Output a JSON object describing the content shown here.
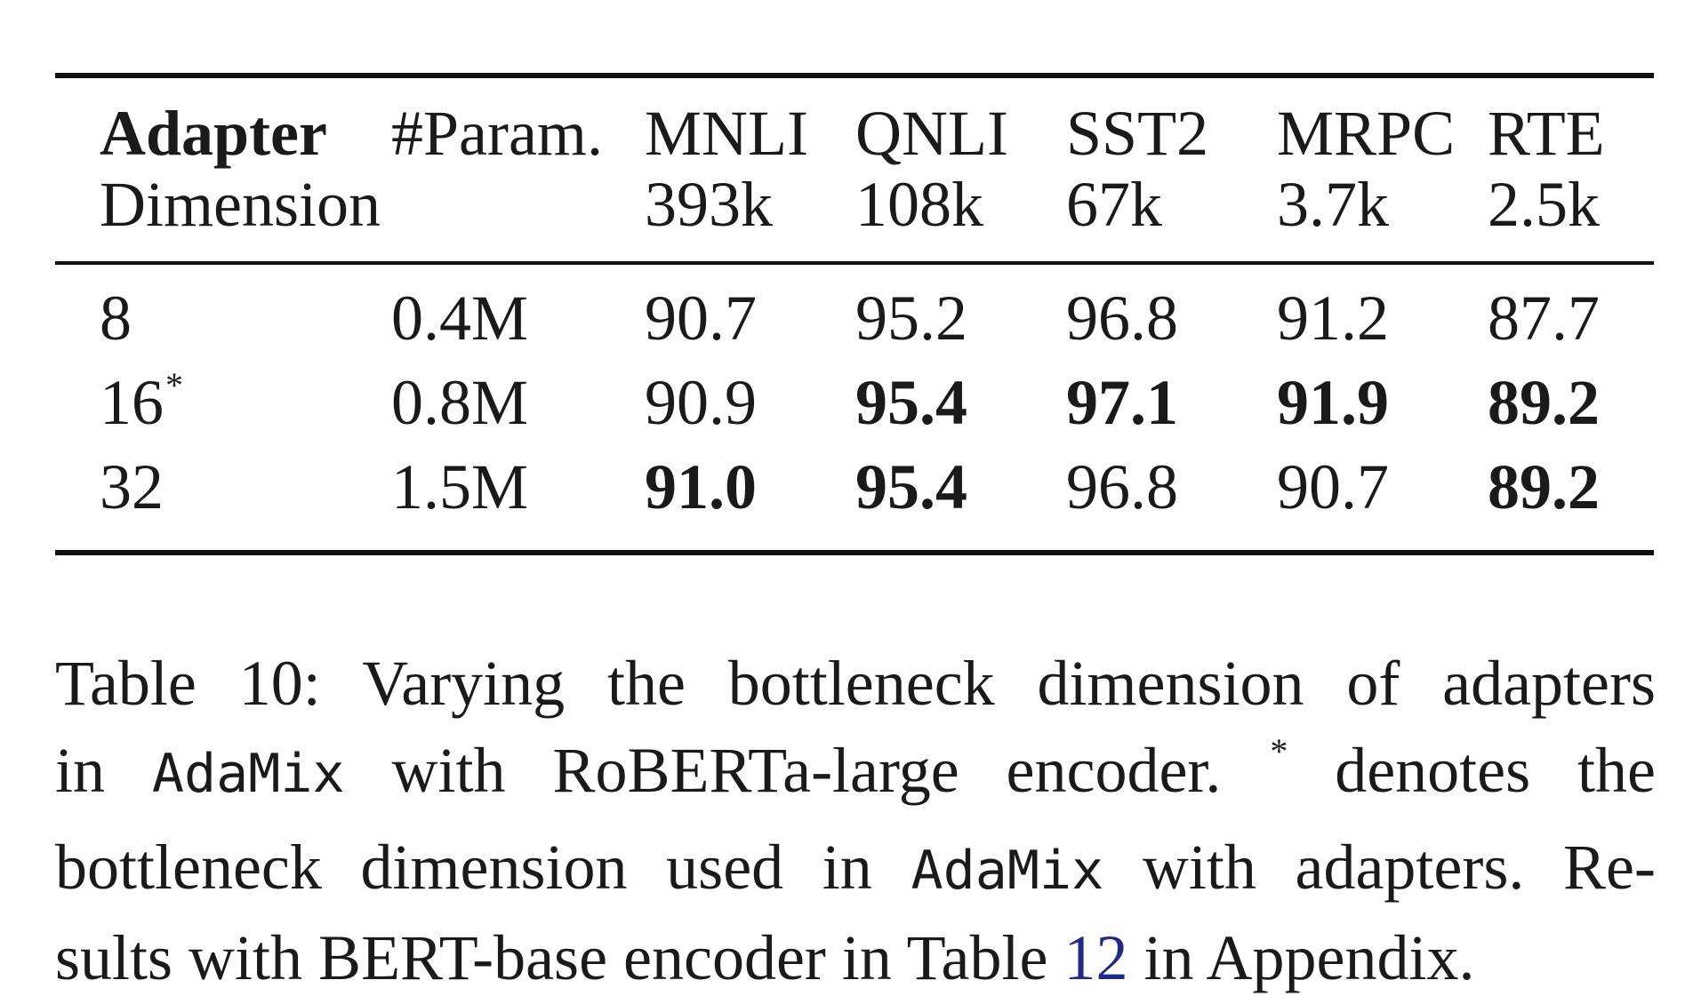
{
  "table": {
    "header_row1": [
      "Adapter",
      "#Param.",
      "MNLI",
      "QNLI",
      "SST2",
      "MRPC",
      "RTE"
    ],
    "header_row2": [
      "Dimension",
      "",
      "393k",
      "108k",
      "67k",
      "3.7k",
      "2.5k"
    ],
    "rows": [
      {
        "dim": "8",
        "dim_mark": "",
        "params": "0.4M",
        "mnli": "90.7",
        "qnli": "95.2",
        "sst2": "96.8",
        "mrpc": "91.2",
        "rte": "87.7"
      },
      {
        "dim": "16",
        "dim_mark": "*",
        "params": "0.8M",
        "mnli": "90.9",
        "qnli": "95.4",
        "sst2": "97.1",
        "mrpc": "91.9",
        "rte": "89.2"
      },
      {
        "dim": "32",
        "dim_mark": "",
        "params": "1.5M",
        "mnli": "91.0",
        "qnli": "95.4",
        "sst2": "96.8",
        "mrpc": "90.7",
        "rte": "89.2"
      }
    ]
  },
  "caption": {
    "l1": "Table 10: Varying the bottleneck dimension of adapters",
    "l2_a": "in ",
    "l2_code": "AdaMix",
    "l2_b": " with RoBERTa-large encoder. ",
    "l2_star": "*",
    "l2_c": " denotes the",
    "l3_a": "bottleneck dimension used in ",
    "l3_code": "AdaMix",
    "l3_b": " with adapters. Re-",
    "l4_a": "sults with BERT-base encoder in Table ",
    "l4_ref": "12",
    "l4_b": " in Appendix."
  },
  "colors": {
    "text": "#1a1a1a",
    "rule": "#111111",
    "link": "#1f2a8a"
  }
}
